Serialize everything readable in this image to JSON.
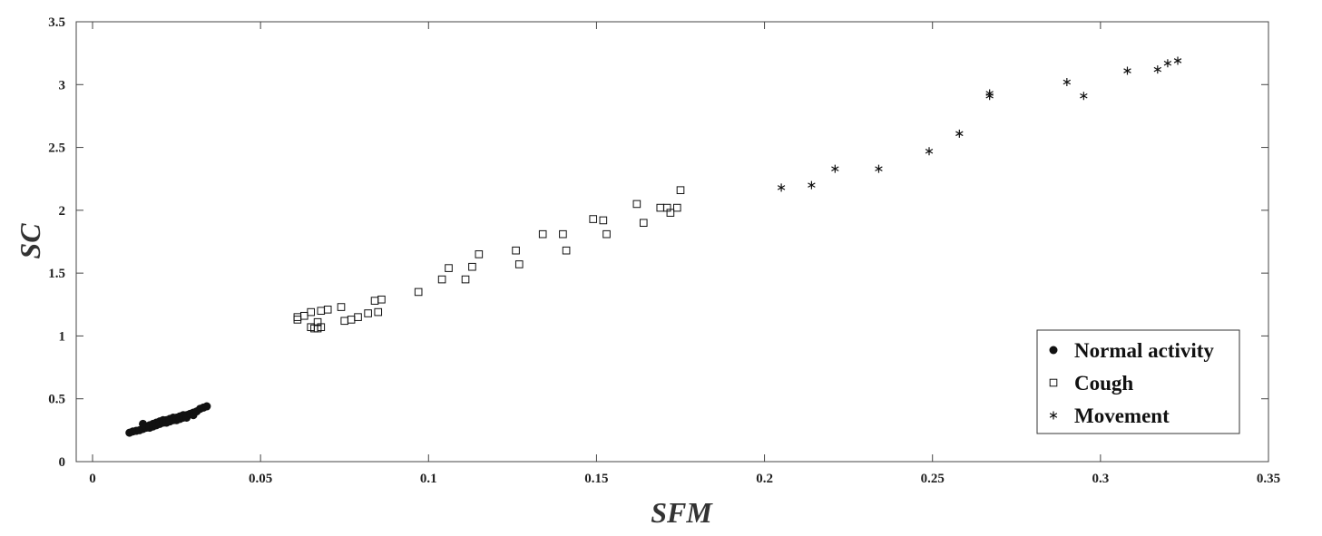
{
  "chart_data": {
    "type": "scatter",
    "title": "",
    "xlabel": "SFM",
    "ylabel": "SC",
    "xlim": [
      0,
      0.35
    ],
    "ylim": [
      0,
      3.5
    ],
    "x_ticks": [
      "0",
      "0.05",
      "0.1",
      "0.15",
      "0.2",
      "0.25",
      "0.3",
      "0.35"
    ],
    "y_ticks": [
      "0",
      "0.5",
      "1",
      "1.5",
      "2",
      "2.5",
      "3",
      "3.5"
    ],
    "grid": false,
    "legend_position": "bottom-right",
    "series": [
      {
        "name": "Normal activity",
        "marker": "filled-circle",
        "color": "#111111",
        "points": [
          [
            0.011,
            0.23
          ],
          [
            0.012,
            0.24
          ],
          [
            0.013,
            0.245
          ],
          [
            0.014,
            0.25
          ],
          [
            0.015,
            0.26
          ],
          [
            0.015,
            0.3
          ],
          [
            0.016,
            0.27
          ],
          [
            0.016,
            0.28
          ],
          [
            0.017,
            0.29
          ],
          [
            0.017,
            0.27
          ],
          [
            0.018,
            0.3
          ],
          [
            0.018,
            0.28
          ],
          [
            0.019,
            0.31
          ],
          [
            0.019,
            0.29
          ],
          [
            0.02,
            0.32
          ],
          [
            0.02,
            0.3
          ],
          [
            0.021,
            0.33
          ],
          [
            0.021,
            0.31
          ],
          [
            0.022,
            0.33
          ],
          [
            0.022,
            0.31
          ],
          [
            0.023,
            0.34
          ],
          [
            0.023,
            0.32
          ],
          [
            0.024,
            0.35
          ],
          [
            0.024,
            0.33
          ],
          [
            0.025,
            0.35
          ],
          [
            0.025,
            0.33
          ],
          [
            0.026,
            0.36
          ],
          [
            0.026,
            0.34
          ],
          [
            0.027,
            0.37
          ],
          [
            0.027,
            0.35
          ],
          [
            0.028,
            0.37
          ],
          [
            0.028,
            0.35
          ],
          [
            0.029,
            0.38
          ],
          [
            0.03,
            0.39
          ],
          [
            0.03,
            0.37
          ],
          [
            0.031,
            0.4
          ],
          [
            0.032,
            0.42
          ],
          [
            0.033,
            0.43
          ],
          [
            0.034,
            0.44
          ]
        ]
      },
      {
        "name": "Cough",
        "marker": "open-square",
        "color": "#111111",
        "points": [
          [
            0.061,
            1.13
          ],
          [
            0.061,
            1.15
          ],
          [
            0.063,
            1.16
          ],
          [
            0.065,
            1.19
          ],
          [
            0.065,
            1.07
          ],
          [
            0.066,
            1.06
          ],
          [
            0.067,
            1.06
          ],
          [
            0.067,
            1.11
          ],
          [
            0.068,
            1.07
          ],
          [
            0.068,
            1.2
          ],
          [
            0.07,
            1.21
          ],
          [
            0.074,
            1.23
          ],
          [
            0.075,
            1.12
          ],
          [
            0.077,
            1.13
          ],
          [
            0.079,
            1.15
          ],
          [
            0.082,
            1.18
          ],
          [
            0.084,
            1.28
          ],
          [
            0.085,
            1.19
          ],
          [
            0.086,
            1.29
          ],
          [
            0.097,
            1.35
          ],
          [
            0.104,
            1.45
          ],
          [
            0.106,
            1.54
          ],
          [
            0.111,
            1.45
          ],
          [
            0.113,
            1.55
          ],
          [
            0.115,
            1.65
          ],
          [
            0.126,
            1.68
          ],
          [
            0.127,
            1.57
          ],
          [
            0.134,
            1.81
          ],
          [
            0.14,
            1.81
          ],
          [
            0.141,
            1.68
          ],
          [
            0.149,
            1.93
          ],
          [
            0.152,
            1.92
          ],
          [
            0.153,
            1.81
          ],
          [
            0.162,
            2.05
          ],
          [
            0.164,
            1.9
          ],
          [
            0.169,
            2.02
          ],
          [
            0.171,
            2.02
          ],
          [
            0.172,
            1.98
          ],
          [
            0.174,
            2.02
          ],
          [
            0.175,
            2.16
          ]
        ]
      },
      {
        "name": "Movement",
        "marker": "asterisk",
        "color": "#111111",
        "points": [
          [
            0.205,
            2.18
          ],
          [
            0.214,
            2.2
          ],
          [
            0.221,
            2.33
          ],
          [
            0.234,
            2.33
          ],
          [
            0.249,
            2.47
          ],
          [
            0.258,
            2.61
          ],
          [
            0.267,
            2.93
          ],
          [
            0.267,
            2.91
          ],
          [
            0.29,
            3.02
          ],
          [
            0.295,
            2.91
          ],
          [
            0.308,
            3.11
          ],
          [
            0.317,
            3.12
          ],
          [
            0.32,
            3.17
          ],
          [
            0.323,
            3.19
          ]
        ]
      }
    ]
  }
}
